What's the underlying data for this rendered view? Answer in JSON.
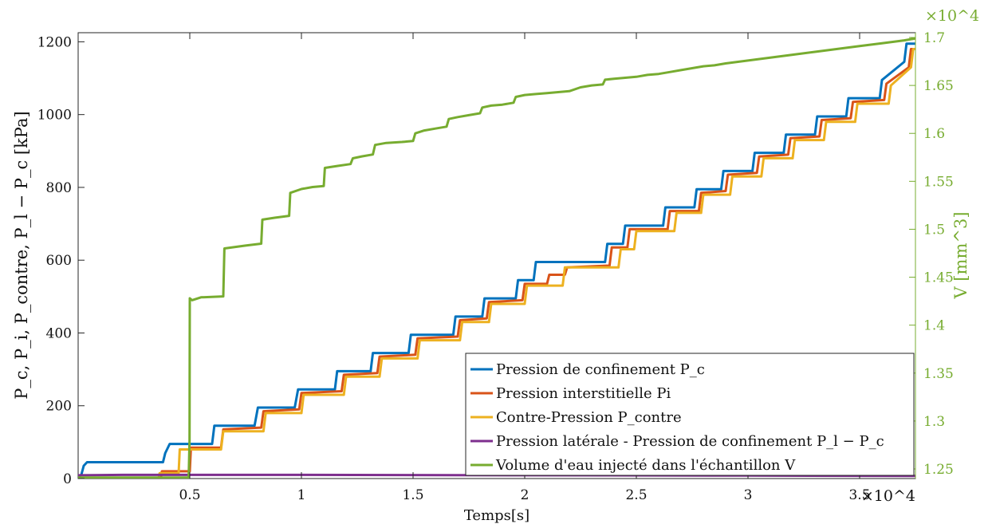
{
  "chart_data": {
    "type": "line",
    "xlabel": "Temps[s]",
    "x_multiplier": "×10^4",
    "ylabel": "P_c, P_i, P_contre, P_l − P_c [kPa]",
    "y2label": "V [mm^3]",
    "y2_multiplier": "×10^4",
    "xlim": [
      0,
      37500
    ],
    "ylim": [
      0,
      1225
    ],
    "y2lim": [
      12400,
      17050
    ],
    "x_ticks": [
      5000,
      10000,
      15000,
      20000,
      25000,
      30000,
      35000
    ],
    "x_tick_labels": [
      "0.5",
      "1",
      "1.5",
      "2",
      "2.5",
      "3",
      "3.5"
    ],
    "y_ticks": [
      0,
      200,
      400,
      600,
      800,
      1000,
      1200
    ],
    "y_tick_labels": [
      "0",
      "200",
      "400",
      "600",
      "800",
      "1000",
      "1200"
    ],
    "y2_ticks": [
      12500,
      13000,
      13500,
      14000,
      14500,
      15000,
      15500,
      16000,
      16500,
      17000
    ],
    "y2_tick_labels": [
      "1.25",
      "1.3",
      "1.35",
      "1.4",
      "1.45",
      "1.5",
      "1.55",
      "1.6",
      "1.65",
      "1.7"
    ],
    "grid": false,
    "legend_position": "bottom-right",
    "series": [
      {
        "name": "Pression de confinement P_c",
        "axis": "left",
        "color": "#0072BD",
        "x": [
          0,
          150,
          250,
          400,
          3800,
          3900,
          4100,
          6000,
          6100,
          7900,
          8050,
          9700,
          9850,
          11500,
          11600,
          13100,
          13200,
          14800,
          14900,
          16800,
          16900,
          18100,
          18200,
          19600,
          19700,
          20400,
          20500,
          23600,
          23700,
          24400,
          24500,
          26200,
          26300,
          27600,
          27700,
          28800,
          28900,
          30200,
          30300,
          31600,
          31700,
          33000,
          33100,
          34400,
          34500,
          35900,
          36000,
          37000,
          37100,
          37500
        ],
        "y": [
          0,
          12,
          35,
          45,
          45,
          70,
          95,
          95,
          145,
          145,
          195,
          195,
          245,
          245,
          295,
          295,
          345,
          345,
          395,
          395,
          445,
          445,
          495,
          495,
          545,
          545,
          595,
          595,
          645,
          645,
          695,
          695,
          745,
          745,
          795,
          795,
          845,
          845,
          895,
          895,
          945,
          945,
          995,
          995,
          1045,
          1045,
          1095,
          1145,
          1195,
          1195
        ]
      },
      {
        "name": "Pression interstitielle Pi",
        "axis": "left",
        "color": "#D95319",
        "x": [
          0,
          3700,
          3750,
          5000,
          5050,
          6400,
          6500,
          8200,
          8300,
          9900,
          10000,
          11800,
          11900,
          13400,
          13500,
          15100,
          15200,
          17000,
          17100,
          18300,
          18400,
          19900,
          20000,
          21000,
          21100,
          21800,
          21900,
          23800,
          23900,
          24600,
          24700,
          26400,
          26500,
          27800,
          27900,
          29000,
          29100,
          30400,
          30500,
          31800,
          31900,
          33200,
          33300,
          34600,
          34700,
          36100,
          36200,
          37200,
          37300,
          37500
        ],
        "y": [
          0,
          0,
          20,
          20,
          85,
          85,
          135,
          140,
          185,
          190,
          235,
          240,
          285,
          290,
          335,
          340,
          385,
          390,
          435,
          440,
          485,
          490,
          535,
          535,
          560,
          560,
          580,
          585,
          635,
          635,
          685,
          685,
          735,
          735,
          785,
          790,
          835,
          840,
          885,
          890,
          935,
          940,
          985,
          990,
          1035,
          1040,
          1085,
          1130,
          1180,
          1180
        ]
      },
      {
        "name": "Contre-Pression P_contre",
        "axis": "left",
        "color": "#EDB120",
        "x": [
          0,
          3600,
          3650,
          4500,
          4550,
          6400,
          6500,
          8300,
          8400,
          10000,
          10100,
          11900,
          12000,
          13500,
          13600,
          15200,
          15300,
          17100,
          17200,
          18400,
          18500,
          20000,
          20100,
          21700,
          21800,
          24200,
          24300,
          24900,
          25000,
          26700,
          26800,
          27900,
          28000,
          29200,
          29300,
          30600,
          30700,
          32000,
          32100,
          33400,
          33500,
          34800,
          34900,
          36300,
          36400,
          37300,
          37400,
          37500
        ],
        "y": [
          0,
          0,
          15,
          15,
          80,
          80,
          130,
          130,
          180,
          180,
          230,
          230,
          280,
          280,
          330,
          330,
          380,
          380,
          430,
          430,
          480,
          480,
          530,
          530,
          580,
          580,
          630,
          630,
          680,
          680,
          730,
          730,
          780,
          780,
          830,
          830,
          880,
          880,
          930,
          930,
          980,
          980,
          1030,
          1030,
          1080,
          1130,
          1180,
          1180
        ]
      },
      {
        "name": "Pression latérale - Pression de confinement P_l − P_c",
        "axis": "left",
        "color": "#7E2F8E",
        "x": [
          0,
          2000,
          5000,
          10000,
          20000,
          30000,
          37500
        ],
        "y": [
          9,
          10,
          10,
          10,
          9,
          8,
          7
        ]
      },
      {
        "name": "Volume d'eau injecté dans l'échantillon V",
        "axis": "right",
        "color": "#77AC30",
        "x": [
          0,
          4950,
          4990,
          5000,
          5100,
          5500,
          6500,
          6550,
          7500,
          8200,
          8250,
          8800,
          9450,
          9500,
          10000,
          10500,
          11000,
          11050,
          11600,
          12200,
          12300,
          12700,
          13200,
          13300,
          13800,
          14500,
          15000,
          15100,
          15500,
          16000,
          16500,
          16600,
          17000,
          17500,
          18000,
          18100,
          18500,
          19000,
          19500,
          19600,
          20000,
          20500,
          21000,
          21500,
          22000,
          22500,
          23000,
          23500,
          23600,
          24000,
          25000,
          25500,
          26000,
          26500,
          27000,
          27500,
          28000,
          28500,
          29000,
          30000,
          31000,
          32000,
          33000,
          34000,
          35000,
          36000,
          37000,
          37500
        ],
        "y": [
          12410,
          12410,
          12800,
          14280,
          14260,
          14290,
          14300,
          14800,
          14830,
          14850,
          15100,
          15120,
          15140,
          15380,
          15420,
          15440,
          15450,
          15640,
          15660,
          15680,
          15740,
          15760,
          15780,
          15880,
          15900,
          15910,
          15920,
          16000,
          16030,
          16050,
          16070,
          16150,
          16170,
          16190,
          16210,
          16270,
          16290,
          16300,
          16320,
          16380,
          16400,
          16410,
          16420,
          16430,
          16440,
          16480,
          16500,
          16510,
          16560,
          16570,
          16590,
          16610,
          16620,
          16640,
          16660,
          16680,
          16700,
          16710,
          16730,
          16760,
          16790,
          16820,
          16850,
          16880,
          16910,
          16940,
          16970,
          16990
        ]
      }
    ]
  }
}
